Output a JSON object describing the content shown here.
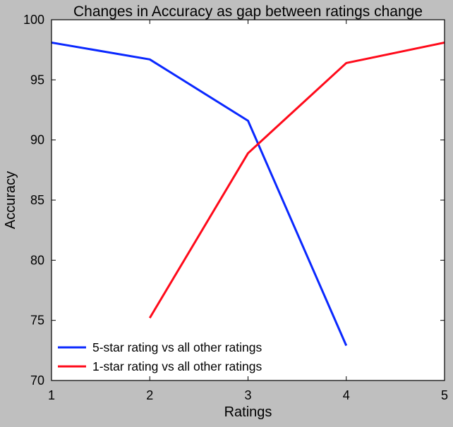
{
  "chart_data": {
    "type": "line",
    "title": "Changes in Accuracy as gap between ratings change",
    "xlabel": "Ratings",
    "ylabel": "Accuracy",
    "xlim": [
      1,
      5
    ],
    "ylim": [
      70,
      100
    ],
    "xticks": [
      "1",
      "2",
      "3",
      "4",
      "5"
    ],
    "yticks": [
      "70",
      "75",
      "80",
      "85",
      "90",
      "95",
      "100"
    ],
    "grid": false,
    "legend_position": "lower-left",
    "series": [
      {
        "name": "5-star rating vs all other ratings",
        "color": "#0a28ff",
        "x": [
          1,
          2,
          3,
          4
        ],
        "y": [
          98.1,
          96.7,
          91.6,
          72.9
        ]
      },
      {
        "name": "1-star rating vs all other ratings",
        "color": "#ff0a1a",
        "x": [
          2,
          3,
          4,
          5
        ],
        "y": [
          75.2,
          88.9,
          96.4,
          98.1
        ]
      }
    ]
  }
}
